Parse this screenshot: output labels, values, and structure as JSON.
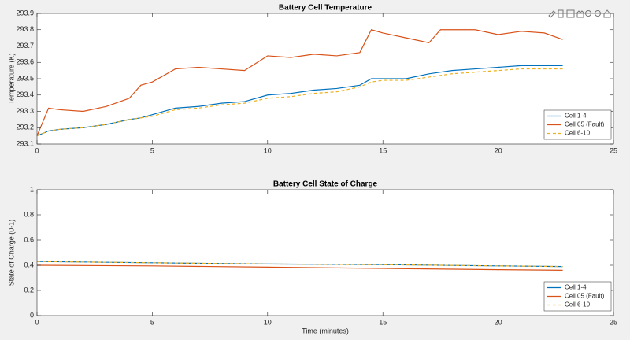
{
  "chart_data": [
    {
      "type": "line",
      "title": "Battery Cell Temperature",
      "ylabel": "Temperature (K)",
      "x": [
        0,
        0.5,
        1,
        2,
        3,
        4,
        4.5,
        5,
        6,
        7,
        8,
        9,
        10,
        11,
        12,
        13,
        14,
        14.5,
        15,
        16,
        17,
        17.5,
        18,
        19,
        20,
        21,
        22,
        22.8
      ],
      "series": [
        {
          "name": "Cell 1-4",
          "color": "#0072bd",
          "dashed": false,
          "values": [
            293.15,
            293.18,
            293.19,
            293.2,
            293.22,
            293.25,
            293.26,
            293.28,
            293.32,
            293.33,
            293.35,
            293.36,
            293.4,
            293.41,
            293.43,
            293.44,
            293.46,
            293.5,
            293.5,
            293.5,
            293.53,
            293.54,
            293.55,
            293.56,
            293.57,
            293.58,
            293.58,
            293.58
          ]
        },
        {
          "name": "Cell 05 (Fault)",
          "color": "#d95319",
          "dashed": false,
          "values": [
            293.15,
            293.32,
            293.31,
            293.3,
            293.33,
            293.38,
            293.46,
            293.48,
            293.56,
            293.57,
            293.56,
            293.55,
            293.64,
            293.63,
            293.65,
            293.64,
            293.66,
            293.8,
            293.78,
            293.75,
            293.72,
            293.8,
            293.8,
            293.8,
            293.77,
            293.79,
            293.78,
            293.74
          ]
        },
        {
          "name": "Cell 6-10",
          "color": "#edb120",
          "dashed": true,
          "values": [
            293.15,
            293.18,
            293.19,
            293.2,
            293.22,
            293.25,
            293.26,
            293.27,
            293.31,
            293.32,
            293.34,
            293.35,
            293.38,
            293.39,
            293.41,
            293.42,
            293.45,
            293.48,
            293.49,
            293.49,
            293.51,
            293.52,
            293.53,
            293.54,
            293.55,
            293.56,
            293.56,
            293.56
          ]
        }
      ],
      "xlim": [
        0,
        25
      ],
      "xticks": [
        0,
        5,
        10,
        15,
        20,
        25
      ],
      "ylim": [
        293.1,
        293.9
      ],
      "yticks": [
        293.1,
        293.2,
        293.3,
        293.4,
        293.5,
        293.6,
        293.7,
        293.8,
        293.9
      ],
      "legend": "lower-right"
    },
    {
      "type": "line",
      "title": "Battery Cell State of Charge",
      "ylabel": "State of Charge (0-1)",
      "xlabel": "Time (minutes)",
      "x": [
        0,
        5,
        10,
        15,
        20,
        22.8
      ],
      "series": [
        {
          "name": "Cell 1-4",
          "color": "#0072bd",
          "dashed": false,
          "values": [
            0.43,
            0.42,
            0.41,
            0.405,
            0.395,
            0.39
          ]
        },
        {
          "name": "Cell 05 (Fault)",
          "color": "#d95319",
          "dashed": false,
          "values": [
            0.4,
            0.395,
            0.385,
            0.375,
            0.365,
            0.36
          ]
        },
        {
          "name": "Cell 6-10",
          "color": "#edb120",
          "dashed": true,
          "values": [
            0.43,
            0.42,
            0.41,
            0.405,
            0.395,
            0.39
          ]
        }
      ],
      "xlim": [
        0,
        25
      ],
      "xticks": [
        0,
        5,
        10,
        15,
        20,
        25
      ],
      "ylim": [
        0,
        1
      ],
      "yticks": [
        0,
        0.2,
        0.4,
        0.6,
        0.8,
        1
      ],
      "legend": "lower-right"
    }
  ]
}
